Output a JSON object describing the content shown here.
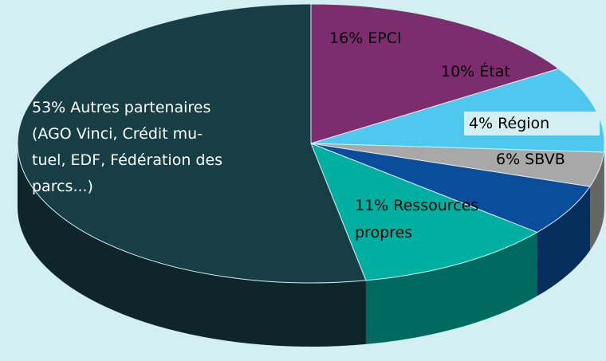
{
  "chart_data": {
    "type": "pie",
    "values": [
      16,
      10,
      4,
      6,
      11,
      53
    ],
    "value_labels": [
      [
        "16% EPCI"
      ],
      [
        "10% État"
      ],
      [
        "4% Région"
      ],
      [
        "6% SBVB"
      ],
      [
        "11% Ressources",
        "propres"
      ],
      [
        "53% Autres partenaires",
        "(AGO Vinci, Crédit mu-",
        "tuel, EDF, Fédération des",
        "parcs...)"
      ]
    ],
    "colors": [
      "#7b2d6e",
      "#4fc8ef",
      "#a8a8a8",
      "#0a4d9b",
      "#00afa0",
      "#173e45"
    ]
  }
}
